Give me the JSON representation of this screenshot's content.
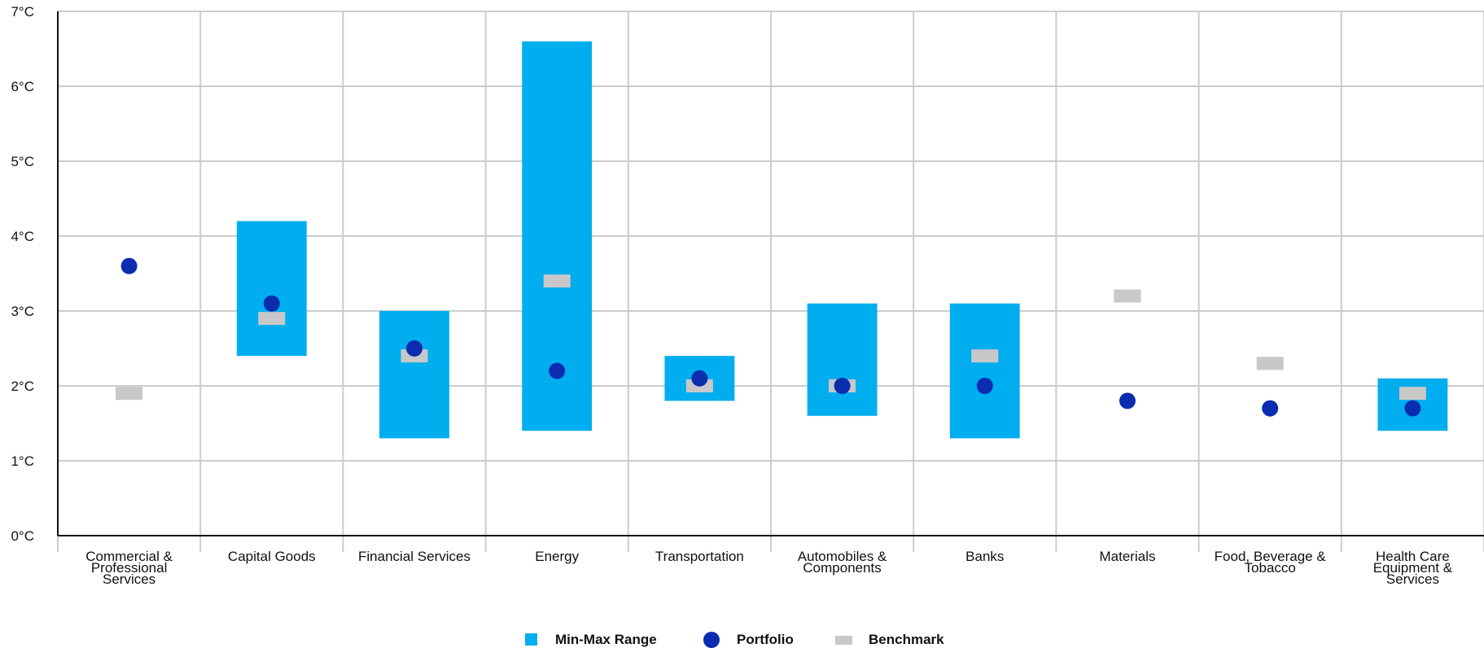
{
  "colors": {
    "range": "#00adef",
    "portfolio": "#0a2db0",
    "benchmark": "#c8c8c8",
    "grid": "#cccccc",
    "axis": "#111111"
  },
  "chart_data": {
    "type": "range-dot",
    "ylim": [
      0,
      7
    ],
    "yticks": [
      {
        "value": 0,
        "label": "0°C"
      },
      {
        "value": 1,
        "label": "1°C"
      },
      {
        "value": 2,
        "label": "2°C"
      },
      {
        "value": 3,
        "label": "3°C"
      },
      {
        "value": 4,
        "label": "4°C"
      },
      {
        "value": 5,
        "label": "5°C"
      },
      {
        "value": 6,
        "label": "6°C"
      },
      {
        "value": 7,
        "label": "7°C"
      }
    ],
    "grid": true,
    "legend_position": "bottom-center",
    "categories": [
      {
        "label_lines": [
          "Commercial &",
          "Professional",
          "Services"
        ],
        "min": null,
        "max": null,
        "portfolio": 3.6,
        "benchmark": 1.9
      },
      {
        "label_lines": [
          "Capital Goods"
        ],
        "min": 2.4,
        "max": 4.2,
        "portfolio": 3.1,
        "benchmark": 2.9
      },
      {
        "label_lines": [
          "Financial Services"
        ],
        "min": 1.3,
        "max": 3.0,
        "portfolio": 2.5,
        "benchmark": 2.4
      },
      {
        "label_lines": [
          "Energy"
        ],
        "min": 1.4,
        "max": 6.6,
        "portfolio": 2.2,
        "benchmark": 3.4
      },
      {
        "label_lines": [
          "Transportation"
        ],
        "min": 1.8,
        "max": 2.4,
        "portfolio": 2.1,
        "benchmark": 2.0
      },
      {
        "label_lines": [
          "Automobiles &",
          "Components"
        ],
        "min": 1.6,
        "max": 3.1,
        "portfolio": 2.0,
        "benchmark": 2.0
      },
      {
        "label_lines": [
          "Banks"
        ],
        "min": 1.3,
        "max": 3.1,
        "portfolio": 2.0,
        "benchmark": 2.4
      },
      {
        "label_lines": [
          "Materials"
        ],
        "min": null,
        "max": null,
        "portfolio": 1.8,
        "benchmark": 3.2
      },
      {
        "label_lines": [
          "Food, Beverage &",
          "Tobacco"
        ],
        "min": null,
        "max": null,
        "portfolio": 1.7,
        "benchmark": 2.3
      },
      {
        "label_lines": [
          "Health Care",
          "Equipment &",
          "Services"
        ],
        "min": 1.4,
        "max": 2.1,
        "portfolio": 1.7,
        "benchmark": 1.9
      }
    ],
    "legend": [
      {
        "key": "range",
        "label": "Min-Max Range"
      },
      {
        "key": "portfolio",
        "label": "Portfolio"
      },
      {
        "key": "benchmark",
        "label": "Benchmark"
      }
    ]
  }
}
